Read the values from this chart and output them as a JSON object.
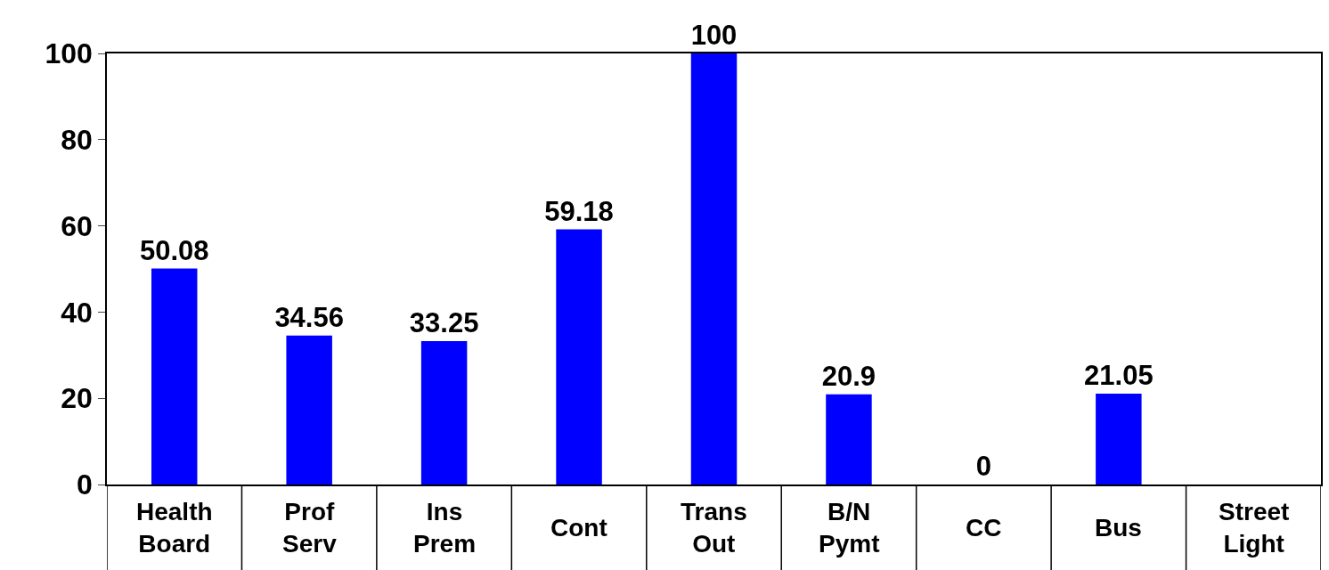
{
  "chart_data": {
    "type": "bar",
    "categories": [
      "Health\nBoard",
      "Prof\nServ",
      "Ins\nPrem",
      "Cont",
      "Trans\nOut",
      "B/N\nPymt",
      "CC",
      "Bus",
      "Street\nLight"
    ],
    "values": [
      50.08,
      34.56,
      33.25,
      59.18,
      100,
      20.9,
      0,
      21.05,
      null
    ],
    "color": "#0000ff",
    "ylim": [
      0,
      100
    ],
    "yticks": [
      0,
      20,
      40,
      60,
      80,
      100
    ],
    "data_labels": true,
    "legend": false
  }
}
